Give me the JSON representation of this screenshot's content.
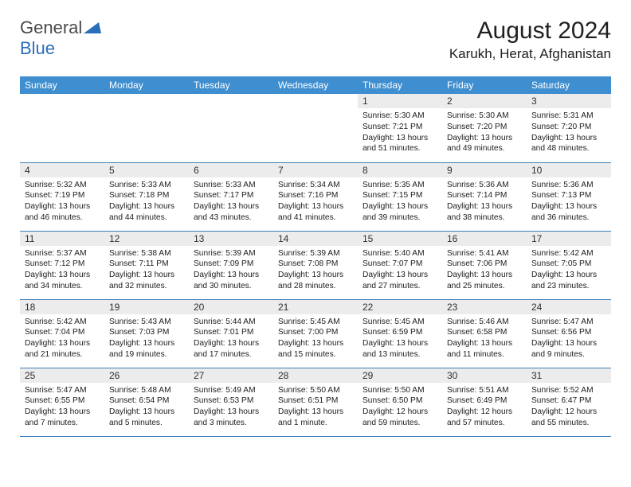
{
  "logo": {
    "text1": "General",
    "text2": "Blue"
  },
  "title": "August 2024",
  "location": "Karukh, Herat, Afghanistan",
  "colors": {
    "header_bg": "#3e8ed0",
    "header_fg": "#ffffff",
    "daynum_bg": "#ececec",
    "rule": "#3e7fb8",
    "text": "#202020"
  },
  "day_headers": [
    "Sunday",
    "Monday",
    "Tuesday",
    "Wednesday",
    "Thursday",
    "Friday",
    "Saturday"
  ],
  "weeks": [
    [
      null,
      null,
      null,
      null,
      {
        "n": "1",
        "sr": "5:30 AM",
        "ss": "7:21 PM",
        "dl": "13 hours and 51 minutes."
      },
      {
        "n": "2",
        "sr": "5:30 AM",
        "ss": "7:20 PM",
        "dl": "13 hours and 49 minutes."
      },
      {
        "n": "3",
        "sr": "5:31 AM",
        "ss": "7:20 PM",
        "dl": "13 hours and 48 minutes."
      }
    ],
    [
      {
        "n": "4",
        "sr": "5:32 AM",
        "ss": "7:19 PM",
        "dl": "13 hours and 46 minutes."
      },
      {
        "n": "5",
        "sr": "5:33 AM",
        "ss": "7:18 PM",
        "dl": "13 hours and 44 minutes."
      },
      {
        "n": "6",
        "sr": "5:33 AM",
        "ss": "7:17 PM",
        "dl": "13 hours and 43 minutes."
      },
      {
        "n": "7",
        "sr": "5:34 AM",
        "ss": "7:16 PM",
        "dl": "13 hours and 41 minutes."
      },
      {
        "n": "8",
        "sr": "5:35 AM",
        "ss": "7:15 PM",
        "dl": "13 hours and 39 minutes."
      },
      {
        "n": "9",
        "sr": "5:36 AM",
        "ss": "7:14 PM",
        "dl": "13 hours and 38 minutes."
      },
      {
        "n": "10",
        "sr": "5:36 AM",
        "ss": "7:13 PM",
        "dl": "13 hours and 36 minutes."
      }
    ],
    [
      {
        "n": "11",
        "sr": "5:37 AM",
        "ss": "7:12 PM",
        "dl": "13 hours and 34 minutes."
      },
      {
        "n": "12",
        "sr": "5:38 AM",
        "ss": "7:11 PM",
        "dl": "13 hours and 32 minutes."
      },
      {
        "n": "13",
        "sr": "5:39 AM",
        "ss": "7:09 PM",
        "dl": "13 hours and 30 minutes."
      },
      {
        "n": "14",
        "sr": "5:39 AM",
        "ss": "7:08 PM",
        "dl": "13 hours and 28 minutes."
      },
      {
        "n": "15",
        "sr": "5:40 AM",
        "ss": "7:07 PM",
        "dl": "13 hours and 27 minutes."
      },
      {
        "n": "16",
        "sr": "5:41 AM",
        "ss": "7:06 PM",
        "dl": "13 hours and 25 minutes."
      },
      {
        "n": "17",
        "sr": "5:42 AM",
        "ss": "7:05 PM",
        "dl": "13 hours and 23 minutes."
      }
    ],
    [
      {
        "n": "18",
        "sr": "5:42 AM",
        "ss": "7:04 PM",
        "dl": "13 hours and 21 minutes."
      },
      {
        "n": "19",
        "sr": "5:43 AM",
        "ss": "7:03 PM",
        "dl": "13 hours and 19 minutes."
      },
      {
        "n": "20",
        "sr": "5:44 AM",
        "ss": "7:01 PM",
        "dl": "13 hours and 17 minutes."
      },
      {
        "n": "21",
        "sr": "5:45 AM",
        "ss": "7:00 PM",
        "dl": "13 hours and 15 minutes."
      },
      {
        "n": "22",
        "sr": "5:45 AM",
        "ss": "6:59 PM",
        "dl": "13 hours and 13 minutes."
      },
      {
        "n": "23",
        "sr": "5:46 AM",
        "ss": "6:58 PM",
        "dl": "13 hours and 11 minutes."
      },
      {
        "n": "24",
        "sr": "5:47 AM",
        "ss": "6:56 PM",
        "dl": "13 hours and 9 minutes."
      }
    ],
    [
      {
        "n": "25",
        "sr": "5:47 AM",
        "ss": "6:55 PM",
        "dl": "13 hours and 7 minutes."
      },
      {
        "n": "26",
        "sr": "5:48 AM",
        "ss": "6:54 PM",
        "dl": "13 hours and 5 minutes."
      },
      {
        "n": "27",
        "sr": "5:49 AM",
        "ss": "6:53 PM",
        "dl": "13 hours and 3 minutes."
      },
      {
        "n": "28",
        "sr": "5:50 AM",
        "ss": "6:51 PM",
        "dl": "13 hours and 1 minute."
      },
      {
        "n": "29",
        "sr": "5:50 AM",
        "ss": "6:50 PM",
        "dl": "12 hours and 59 minutes."
      },
      {
        "n": "30",
        "sr": "5:51 AM",
        "ss": "6:49 PM",
        "dl": "12 hours and 57 minutes."
      },
      {
        "n": "31",
        "sr": "5:52 AM",
        "ss": "6:47 PM",
        "dl": "12 hours and 55 minutes."
      }
    ]
  ],
  "labels": {
    "sunrise": "Sunrise: ",
    "sunset": "Sunset: ",
    "daylight": "Daylight: "
  }
}
